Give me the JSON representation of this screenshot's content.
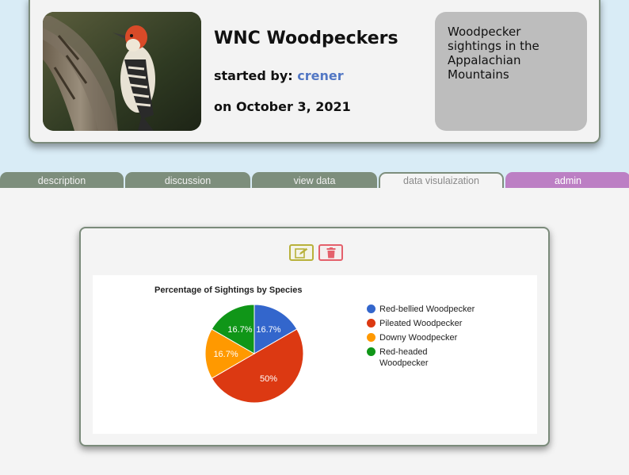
{
  "header": {
    "title": "WNC Woodpeckers",
    "started_by_label": "started by:",
    "author": "crener",
    "date": "on October 3, 2021",
    "description": "Woodpecker sightings in the Appalachian Mountains",
    "photo_icon": "woodpecker-photo"
  },
  "tabs": [
    {
      "label": "description",
      "active": false
    },
    {
      "label": "discussion",
      "active": false
    },
    {
      "label": "view data",
      "active": false
    },
    {
      "label": "data visulaization",
      "active": true
    },
    {
      "label": "admin",
      "active": false
    }
  ],
  "toolbar": {
    "edit_icon": "edit-icon",
    "delete_icon": "trash-icon",
    "edit_color": "#b8b13a",
    "delete_color": "#e4606b"
  },
  "chart_data": {
    "type": "pie",
    "title": "Percentage of Sightings by Species",
    "legend_position": "right",
    "slices": [
      {
        "label": "Red-bellied Woodpecker",
        "value": 16.7,
        "display": "16.7%",
        "color": "#3366cc"
      },
      {
        "label": "Pileated Woodpecker",
        "value": 50,
        "display": "50%",
        "color": "#dc3912"
      },
      {
        "label": "Downy Woodpecker",
        "value": 16.7,
        "display": "16.7%",
        "color": "#ff9900"
      },
      {
        "label": "Red-headed Woodpecker",
        "value": 16.7,
        "display": "16.7%",
        "color": "#109618"
      }
    ]
  }
}
